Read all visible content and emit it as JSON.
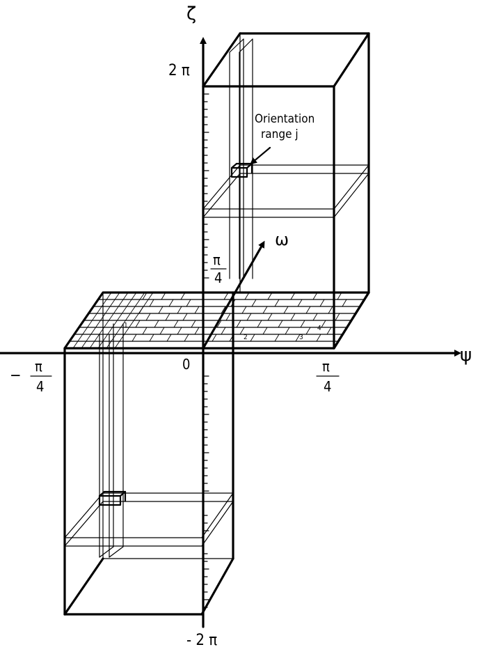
{
  "axes": {
    "zeta": "ζ",
    "omega": "ω",
    "psi": "ψ"
  },
  "ticks": {
    "zeta_top": "2 π",
    "zeta_bottom": "- 2 π",
    "zeta_quarter_num": "π",
    "zeta_quarter_den": "4",
    "psi_neg_sign": "−",
    "psi_neg_num": "π",
    "psi_neg_den": "4",
    "psi_pos_num": "π",
    "psi_pos_den": "4",
    "origin": "0"
  },
  "annotation": {
    "line1": "Orientation",
    "line2": "range j"
  },
  "grid_numbers": [
    "1",
    "2",
    "3",
    "4"
  ]
}
